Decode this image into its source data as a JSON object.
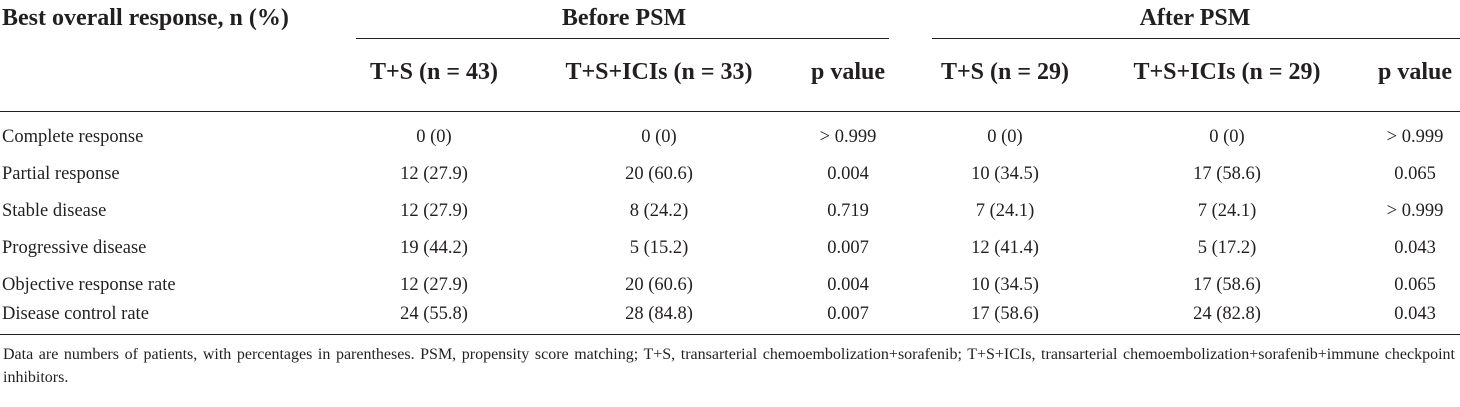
{
  "table": {
    "top_left_header": "Best overall response, n (%)",
    "group_headers": [
      "Before PSM",
      "After PSM"
    ],
    "column_headers": [
      "T+S (n = 43)",
      "T+S+ICIs (n = 33)",
      "p value",
      "T+S (n = 29)",
      "T+S+ICIs (n = 29)",
      "p value"
    ],
    "rows": [
      {
        "label": "Complete response",
        "values": [
          "0 (0)",
          "0 (0)",
          "> 0.999",
          "0 (0)",
          "0 (0)",
          "> 0.999"
        ]
      },
      {
        "label": "Partial response",
        "values": [
          "12 (27.9)",
          "20 (60.6)",
          "0.004",
          "10 (34.5)",
          "17 (58.6)",
          "0.065"
        ]
      },
      {
        "label": "Stable disease",
        "values": [
          "12 (27.9)",
          "8 (24.2)",
          "0.719",
          "7 (24.1)",
          "7 (24.1)",
          "> 0.999"
        ]
      },
      {
        "label": "Progressive disease",
        "values": [
          "19 (44.2)",
          "5 (15.2)",
          "0.007",
          "12 (41.4)",
          "5 (17.2)",
          "0.043"
        ]
      },
      {
        "label": "Objective response rate",
        "values": [
          "12 (27.9)",
          "20 (60.6)",
          "0.004",
          "10 (34.5)",
          "17 (58.6)",
          "0.065"
        ]
      },
      {
        "label": "Disease control rate",
        "values": [
          "24 (55.8)",
          "28 (84.8)",
          "0.007",
          "17 (58.6)",
          "24 (82.8)",
          "0.043"
        ]
      }
    ],
    "footnote": "Data are numbers of patients, with percentages in parentheses. PSM, propensity score matching; T+S, transarterial chemoembolization+sorafenib; T+S+ICIs, transarterial chemoembolization+sorafenib+immune checkpoint inhibitors."
  }
}
